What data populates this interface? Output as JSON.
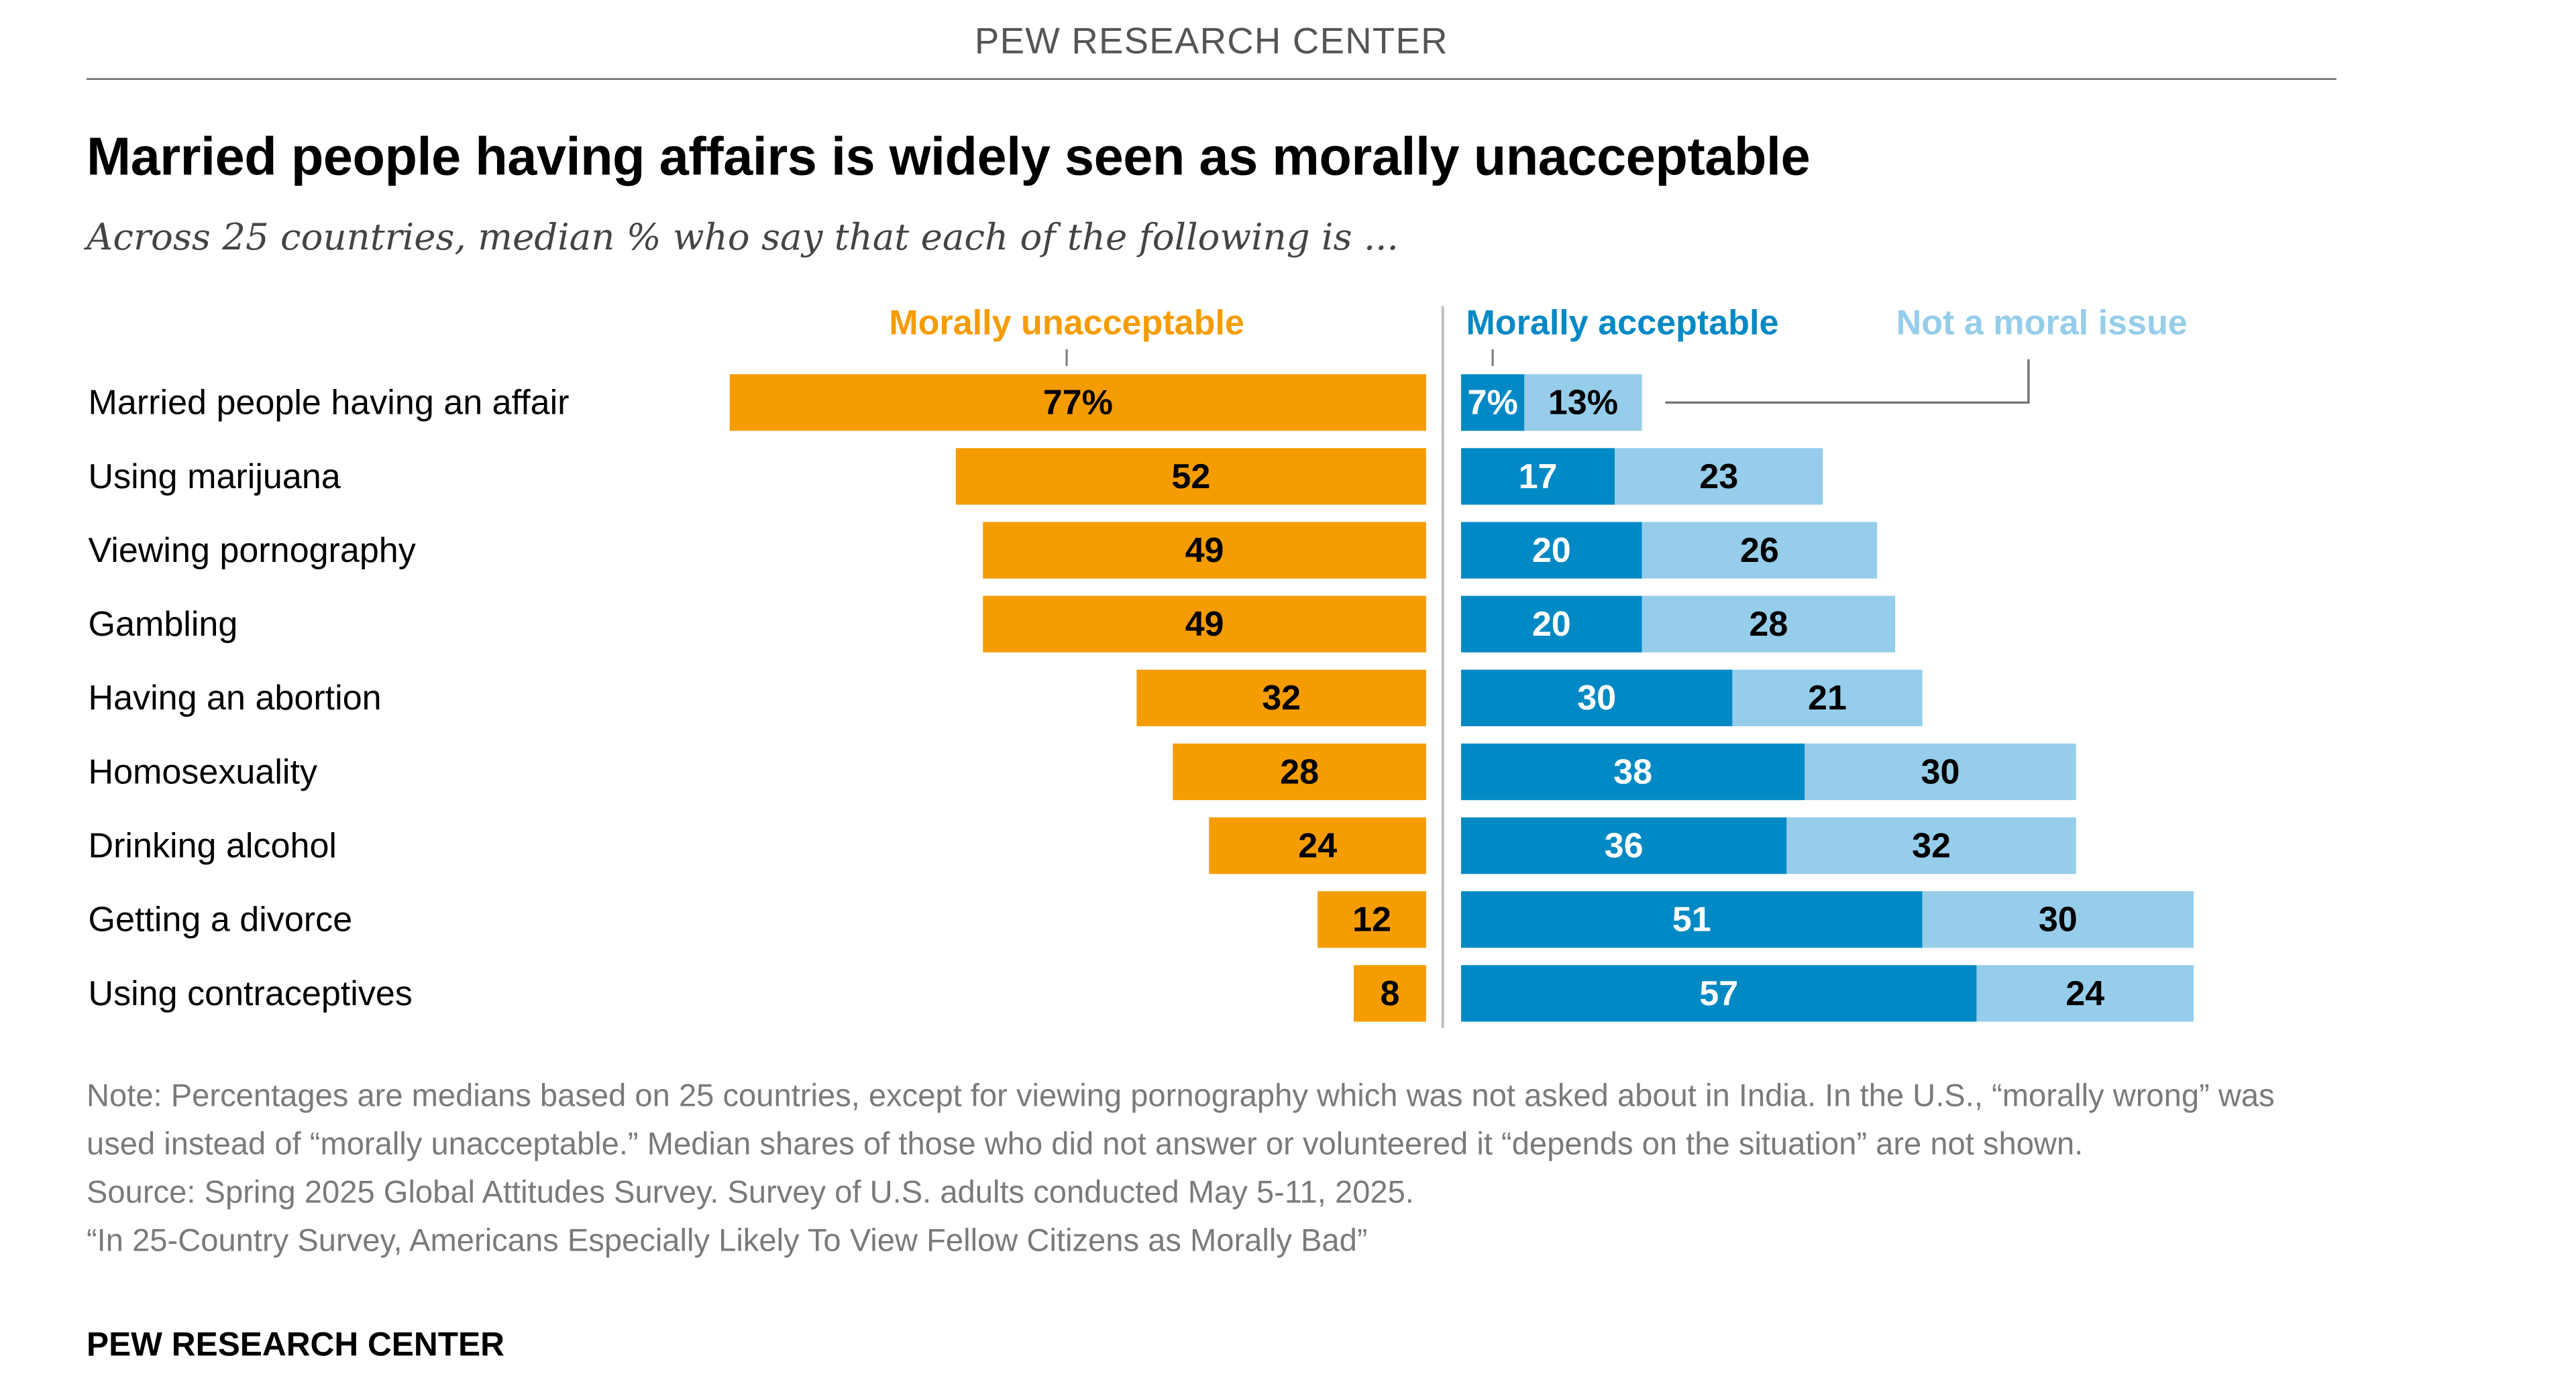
{
  "header": {
    "brand": "PEW RESEARCH CENTER"
  },
  "title": "Married people having affairs is widely seen as morally unacceptable",
  "subtitle": "Across 25 countries, median % who say that each of the following is ...",
  "colors": {
    "morally_unacceptable": "#F59C00",
    "morally_acceptable": "#0089C4",
    "not_a_moral_issue": "#95CDEA",
    "text_dark": "#000000",
    "text_light": "#ffffff",
    "note_gray": "#7a7a7a"
  },
  "chart_data": {
    "type": "bar",
    "orientation": "horizontal",
    "layout": "diverging-stacked",
    "categories": [
      "Married people having an affair",
      "Using marijuana",
      "Viewing pornography",
      "Gambling",
      "Having an abortion",
      "Homosexuality",
      "Drinking alcohol",
      "Getting a divorce",
      "Using contraceptives"
    ],
    "series": [
      {
        "name": "Morally unacceptable",
        "side": "left",
        "values": [
          77,
          52,
          49,
          49,
          32,
          28,
          24,
          12,
          8
        ],
        "labels": [
          "77%",
          "52",
          "49",
          "49",
          "32",
          "28",
          "24",
          "12",
          "8"
        ]
      },
      {
        "name": "Morally acceptable",
        "side": "right",
        "values": [
          7,
          17,
          20,
          20,
          30,
          38,
          36,
          51,
          57
        ],
        "labels": [
          "7%",
          "17",
          "20",
          "20",
          "30",
          "38",
          "36",
          "51",
          "57"
        ]
      },
      {
        "name": "Not a moral issue",
        "side": "right",
        "values": [
          13,
          23,
          26,
          28,
          21,
          30,
          32,
          30,
          24
        ],
        "labels": [
          "13%",
          "23",
          "26",
          "28",
          "21",
          "30",
          "32",
          "30",
          "24"
        ]
      }
    ],
    "unit": "%",
    "grid": false
  },
  "notes": {
    "note": "Note: Percentages are medians based on 25 countries, except for viewing pornography which was not asked about in India. In the U.S., “morally wrong” was used instead of “morally unacceptable.” Median shares of those who did not answer or volunteered it “depends on the situation” are not shown.",
    "source": "Source: Spring 2025 Global Attitudes Survey. Survey of U.S. adults conducted May 5-11, 2025.",
    "report": "“In 25-Country Survey, Americans Especially Likely To View Fellow Citizens as Morally Bad”"
  },
  "footer": {
    "brand": "PEW RESEARCH CENTER"
  }
}
